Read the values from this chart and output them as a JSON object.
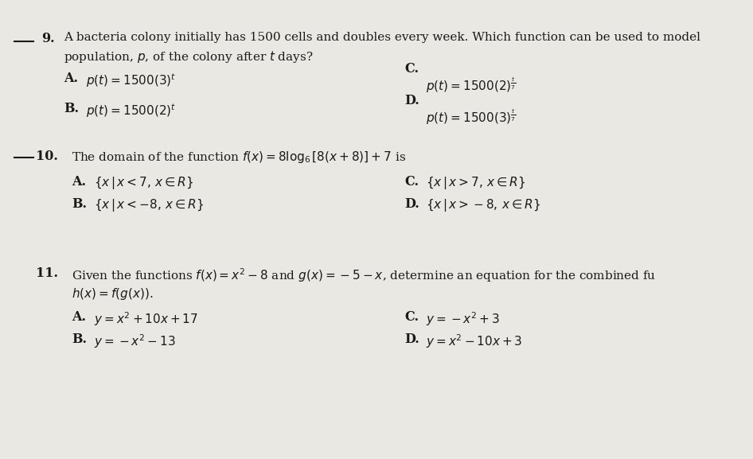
{
  "bg_color": "#eae8e3",
  "text_color": "#1a1a1a",
  "figsize": [
    9.46,
    5.77
  ],
  "dpi": 100,
  "q9_intro_line1": "A bacteria colony initially has 1500 cells and doubles every week. Which function can be used to model",
  "q9_intro_line2": "population, $p$, of the colony after $t$ days?",
  "q9_A": "$p(t) = 1500(3)^{t}$",
  "q9_B": "$p(t) = 1500(2)^{t}$",
  "q9_C": "$p(t) = 1500(2)^{\\frac{t}{7}}$",
  "q9_D": "$p(t) = 1500(3)^{\\frac{t}{7}}$",
  "q10_line": "The domain of the function $f(x) = 8\\log_6[8(x + 8)] + 7$ is",
  "q10_A": "$\\{x\\,|\\,x < 7,\\, x \\in R\\}$",
  "q10_B": "$\\{x\\,|\\,x < -8,\\, x \\in R\\}$",
  "q10_C": "$\\{x\\,|\\,x > 7,\\, x \\in R\\}$",
  "q10_D": "$\\{x\\,|\\,x > -8,\\, x \\in R\\}$",
  "q11_line": "Given the functions $f(x) = x^2 - 8$ and $g(x) = -5 - x$, determine an equation for the combined fu",
  "q11_hx": "$h(x) = f(g(x)).$",
  "q11_A": "$y = x^2 + 10x + 17$",
  "q11_B": "$y = -x^2 - 13$",
  "q11_C": "$y = -x^2 + 3$",
  "q11_D": "$y = x^2 - 10x + 3$",
  "fs": 11.0,
  "fs_bold": 11.5
}
